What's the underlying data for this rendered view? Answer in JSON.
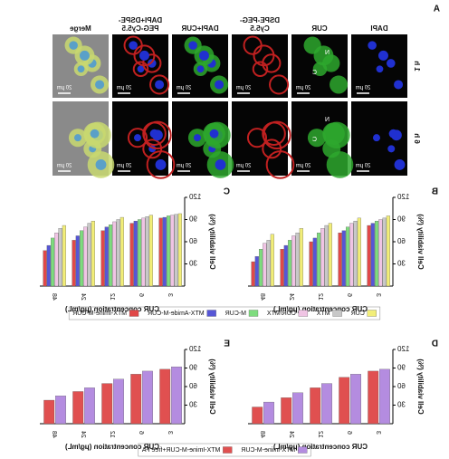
{
  "panel_a": {
    "label": "A",
    "columns": [
      [
        "DAPI"
      ],
      [
        "CUR"
      ],
      [
        "DSPE-PEG-",
        "Cy5.5"
      ],
      [
        "DAPI+CUR"
      ],
      [
        "DAPI+DSPE-",
        "PEG-Cy5.5"
      ],
      [
        "Merge"
      ]
    ],
    "rows": [
      "1 h",
      "6 h"
    ],
    "scale_bar": "20 μm",
    "annotations": [
      "N",
      "C"
    ]
  },
  "chart_data": [
    {
      "type": "bar",
      "label": "B",
      "ylabel": "Cell viability (%)",
      "xlabel": "CUR concentration (μg/mL)",
      "categories": [
        "3",
        "6",
        "12",
        "24",
        "48"
      ],
      "ylim": [
        0,
        120
      ],
      "yticks": [
        30,
        60,
        90,
        120
      ],
      "series": [
        {
          "name": "CUR",
          "color": "#f2ee78",
          "values": [
            95,
            92,
            85,
            78,
            70
          ]
        },
        {
          "name": "MTX",
          "color": "#c8c8c8",
          "values": [
            92,
            88,
            82,
            72,
            62
          ]
        },
        {
          "name": "CUR/MTX",
          "color": "#f0c4e4",
          "values": [
            90,
            85,
            78,
            68,
            58
          ]
        },
        {
          "name": "M-CUR",
          "color": "#7edc7e",
          "values": [
            88,
            80,
            72,
            62,
            50
          ]
        },
        {
          "name": "MTX-Amide-M-CUR",
          "color": "#5656d6",
          "values": [
            85,
            75,
            65,
            55,
            40
          ]
        },
        {
          "name": "MTX-Imine-M-CUR",
          "color": "#e04848",
          "values": [
            82,
            72,
            60,
            50,
            33
          ]
        }
      ]
    },
    {
      "type": "bar",
      "label": "C",
      "ylabel": "Cell viability (%)",
      "xlabel": "CUR concentration (μg/mL)",
      "categories": [
        "3",
        "6",
        "12",
        "24",
        "48"
      ],
      "ylim": [
        0,
        120
      ],
      "yticks": [
        30,
        60,
        90,
        120
      ],
      "series": [
        {
          "color": "#f2ee78",
          "values": [
            98,
            96,
            93,
            88,
            82
          ]
        },
        {
          "color": "#c8c8c8",
          "values": [
            97,
            94,
            90,
            85,
            78
          ]
        },
        {
          "color": "#f0c4e4",
          "values": [
            96,
            92,
            87,
            80,
            72
          ]
        },
        {
          "color": "#7edc7e",
          "values": [
            95,
            90,
            83,
            75,
            65
          ]
        },
        {
          "color": "#5656d6",
          "values": [
            93,
            88,
            80,
            68,
            55
          ]
        },
        {
          "color": "#e04848",
          "values": [
            92,
            85,
            75,
            62,
            48
          ]
        }
      ]
    },
    {
      "type": "bar",
      "label": "D",
      "ylabel": "Cell viability (%)",
      "xlabel": "CUR concentration (μg/mL)",
      "categories": [
        "3",
        "6",
        "12",
        "24",
        "48"
      ],
      "ylim": [
        0,
        120
      ],
      "yticks": [
        30,
        60,
        90,
        120
      ],
      "series": [
        {
          "name": "MTX-Imine-M-CUR",
          "color": "#b48ce0",
          "values": [
            88,
            80,
            65,
            50,
            35
          ]
        },
        {
          "name": "MTX-Imine-M-CUR+free FA",
          "color": "#e05050",
          "values": [
            85,
            75,
            58,
            42,
            27
          ]
        }
      ]
    },
    {
      "type": "bar",
      "label": "E",
      "ylabel": "Cell viability (%)",
      "xlabel": "CUR concentration (μg/mL)",
      "categories": [
        "3",
        "6",
        "12",
        "24",
        "48"
      ],
      "ylim": [
        0,
        120
      ],
      "yticks": [
        30,
        60,
        90,
        120
      ],
      "series": [
        {
          "color": "#b48ce0",
          "values": [
            92,
            85,
            72,
            58,
            45
          ]
        },
        {
          "color": "#e05050",
          "values": [
            88,
            80,
            65,
            52,
            38
          ]
        }
      ]
    }
  ]
}
